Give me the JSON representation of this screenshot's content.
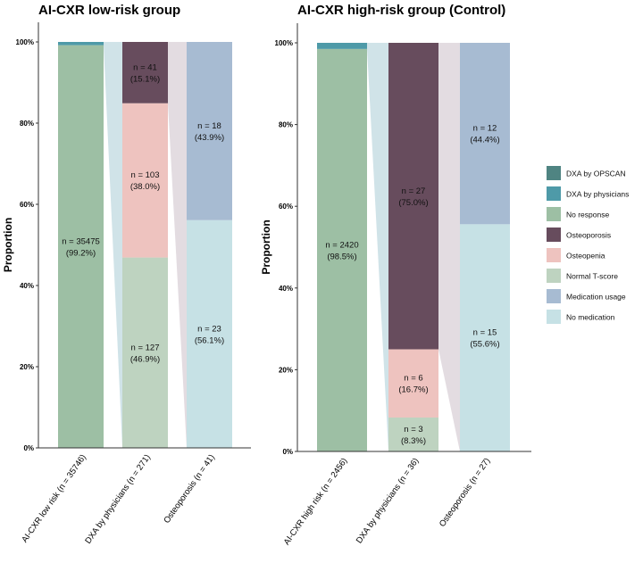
{
  "chart_data": [
    {
      "type": "bar",
      "subtype": "stacked-proportion",
      "title": "AI-CXR low-risk group",
      "xlabel": "",
      "ylabel": "Proportion",
      "ylim": [
        0,
        1
      ],
      "yticks": [
        "0%",
        "20%",
        "40%",
        "60%",
        "80%",
        "100%"
      ],
      "grid": false,
      "categories": [
        "AI-CXR low risk (n = 35746)",
        "DXA by physicians (n = 271)",
        "Osteoporosis (n = 41)"
      ],
      "bars": [
        {
          "category": "AI-CXR low risk (n = 35746)",
          "segments": [
            {
              "series": "No response",
              "value": 0.992,
              "n_label": "n = 35475",
              "pct_label": "(99.2%)"
            },
            {
              "series": "DXA by physicians",
              "value": 0.008,
              "n_label": "",
              "pct_label": ""
            }
          ]
        },
        {
          "category": "DXA by physicians (n = 271)",
          "segments": [
            {
              "series": "Normal T-score",
              "value": 0.469,
              "n_label": "n = 127",
              "pct_label": "(46.9%)"
            },
            {
              "series": "Osteopenia",
              "value": 0.38,
              "n_label": "n = 103",
              "pct_label": "(38.0%)"
            },
            {
              "series": "Osteoporosis",
              "value": 0.151,
              "n_label": "n = 41",
              "pct_label": "(15.1%)"
            }
          ]
        },
        {
          "category": "Osteoporosis (n = 41)",
          "segments": [
            {
              "series": "No medication",
              "value": 0.561,
              "n_label": "n = 23",
              "pct_label": "(56.1%)"
            },
            {
              "series": "Medication usage",
              "value": 0.439,
              "n_label": "n = 18",
              "pct_label": "(43.9%)"
            }
          ]
        }
      ],
      "flows": [
        {
          "from_bar": 0,
          "from_series": "DXA by physicians",
          "to_bar": 1
        },
        {
          "from_bar": 1,
          "from_series": "Osteoporosis",
          "to_bar": 2
        }
      ]
    },
    {
      "type": "bar",
      "subtype": "stacked-proportion",
      "title": "AI-CXR high-risk group (Control)",
      "xlabel": "",
      "ylabel": "Proportion",
      "ylim": [
        0,
        1
      ],
      "yticks": [
        "0%",
        "20%",
        "40%",
        "60%",
        "80%",
        "100%"
      ],
      "grid": false,
      "categories": [
        "AI-CXR high risk (n = 2456)",
        "DXA by physicians (n = 36)",
        "Osteoporosis (n = 27)"
      ],
      "bars": [
        {
          "category": "AI-CXR high risk (n = 2456)",
          "segments": [
            {
              "series": "No response",
              "value": 0.985,
              "n_label": "n = 2420",
              "pct_label": "(98.5%)"
            },
            {
              "series": "DXA by physicians",
              "value": 0.015,
              "n_label": "",
              "pct_label": ""
            }
          ]
        },
        {
          "category": "DXA by physicians (n = 36)",
          "segments": [
            {
              "series": "Normal T-score",
              "value": 0.083,
              "n_label": "n = 3",
              "pct_label": "(8.3%)"
            },
            {
              "series": "Osteopenia",
              "value": 0.167,
              "n_label": "n = 6",
              "pct_label": "(16.7%)"
            },
            {
              "series": "Osteoporosis",
              "value": 0.75,
              "n_label": "n = 27",
              "pct_label": "(75.0%)"
            }
          ]
        },
        {
          "category": "Osteoporosis (n = 27)",
          "segments": [
            {
              "series": "No medication",
              "value": 0.556,
              "n_label": "n = 15",
              "pct_label": "(55.6%)"
            },
            {
              "series": "Medication usage",
              "value": 0.444,
              "n_label": "n = 12",
              "pct_label": "(44.4%)"
            }
          ]
        }
      ],
      "flows": [
        {
          "from_bar": 0,
          "from_series": "DXA by physicians",
          "to_bar": 1
        },
        {
          "from_bar": 1,
          "from_series": "Osteoporosis",
          "to_bar": 2
        }
      ]
    }
  ],
  "legend": {
    "placement": "right",
    "items": [
      {
        "label": "DXA by OPSCAN",
        "color": "#4f8482"
      },
      {
        "label": "DXA by physicians",
        "color": "#4e9aa8"
      },
      {
        "label": "No response",
        "color": "#9dbfa4"
      },
      {
        "label": "Osteoporosis",
        "color": "#674c5d"
      },
      {
        "label": "Osteopenia",
        "color": "#eec3bf"
      },
      {
        "label": "Normal T-score",
        "color": "#bed3c0"
      },
      {
        "label": "Medication usage",
        "color": "#a7bbd2"
      },
      {
        "label": "No medication",
        "color": "#c6e1e5"
      }
    ]
  },
  "colors": {
    "flow_band_light": "#d0e3e8",
    "flow_band_dark": "#e3dce1",
    "axis": "#333333",
    "text": "#000000"
  }
}
